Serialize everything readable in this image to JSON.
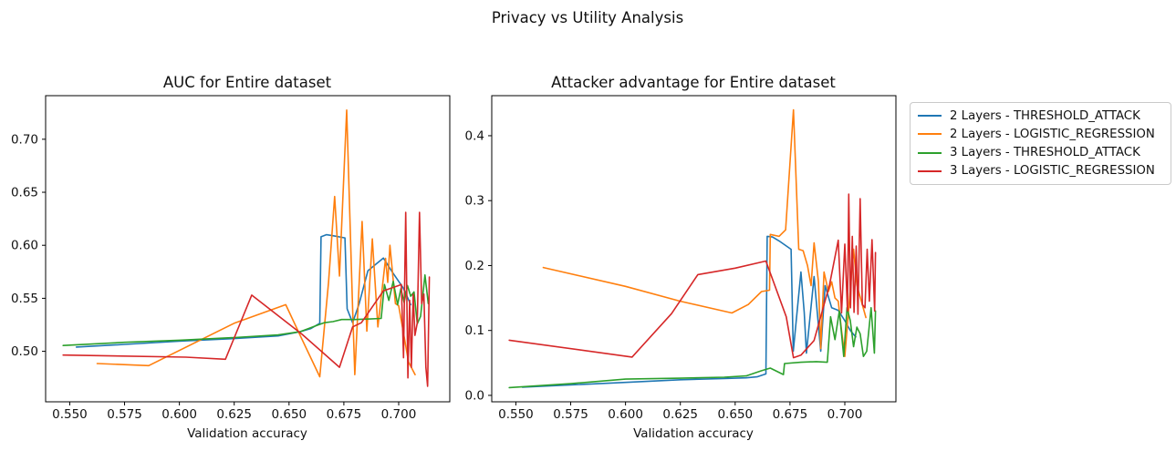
{
  "figure": {
    "suptitle": "Privacy vs Utility Analysis",
    "background": "#ffffff",
    "spine_color": "#000000",
    "text_color": "#111111"
  },
  "legend": {
    "position": "outside-right",
    "entries": [
      {
        "label": "2 Layers - THRESHOLD_ATTACK",
        "color": "#1f77b4"
      },
      {
        "label": "2 Layers - LOGISTIC_REGRESSION",
        "color": "#ff7f0e"
      },
      {
        "label": "3 Layers - THRESHOLD_ATTACK",
        "color": "#2ca02c"
      },
      {
        "label": "3 Layers - LOGISTIC_REGRESSION",
        "color": "#d62728"
      }
    ]
  },
  "chart_data": [
    {
      "type": "line",
      "title": "AUC for Entire dataset",
      "xlabel": "Validation accuracy",
      "ylabel": "",
      "grid": false,
      "xlim": [
        0.539,
        0.7233
      ],
      "ylim": [
        0.4524,
        0.7411
      ],
      "xticks": [
        0.55,
        0.575,
        0.6,
        0.625,
        0.65,
        0.675,
        0.7
      ],
      "xtick_labels": [
        "0.550",
        "0.575",
        "0.600",
        "0.625",
        "0.650",
        "0.675",
        "0.700"
      ],
      "yticks": [
        0.5,
        0.55,
        0.6,
        0.65,
        0.7
      ],
      "ytick_labels": [
        "0.50",
        "0.55",
        "0.60",
        "0.65",
        "0.70"
      ],
      "series": [
        {
          "name": "2 Layers - THRESHOLD_ATTACK",
          "color": "#1f77b4",
          "points": [
            [
              0.553,
              0.504
            ],
            [
              0.575,
              0.5065
            ],
            [
              0.6,
              0.5095
            ],
            [
              0.625,
              0.512
            ],
            [
              0.645,
              0.5145
            ],
            [
              0.655,
              0.5185
            ],
            [
              0.66,
              0.5215
            ],
            [
              0.664,
              0.5265
            ],
            [
              0.6646,
              0.608
            ],
            [
              0.667,
              0.61
            ],
            [
              0.67,
              0.609
            ],
            [
              0.6755,
              0.607
            ],
            [
              0.6765,
              0.54
            ],
            [
              0.679,
              0.527
            ],
            [
              0.682,
              0.545
            ],
            [
              0.686,
              0.576
            ],
            [
              0.693,
              0.588
            ],
            [
              0.697,
              0.575
            ],
            [
              0.7,
              0.566
            ],
            [
              0.702,
              0.56
            ],
            [
              0.704,
              0.551
            ],
            [
              0.7055,
              0.544
            ]
          ]
        },
        {
          "name": "2 Layers - LOGISTIC_REGRESSION",
          "color": "#ff7f0e",
          "points": [
            [
              0.5625,
              0.4885
            ],
            [
              0.586,
              0.4865
            ],
            [
              0.625,
              0.5265
            ],
            [
              0.6485,
              0.544
            ],
            [
              0.656,
              0.511
            ],
            [
              0.664,
              0.476
            ],
            [
              0.668,
              0.565
            ],
            [
              0.6708,
              0.646
            ],
            [
              0.673,
              0.571
            ],
            [
              0.6763,
              0.7275
            ],
            [
              0.679,
              0.54
            ],
            [
              0.68,
              0.478
            ],
            [
              0.6833,
              0.6225
            ],
            [
              0.6855,
              0.519
            ],
            [
              0.688,
              0.606
            ],
            [
              0.6905,
              0.523
            ],
            [
              0.694,
              0.5876
            ],
            [
              0.695,
              0.565
            ],
            [
              0.696,
              0.6
            ],
            [
              0.6985,
              0.545
            ],
            [
              0.7,
              0.543
            ],
            [
              0.7045,
              0.49
            ],
            [
              0.7075,
              0.478
            ]
          ]
        },
        {
          "name": "3 Layers - THRESHOLD_ATTACK",
          "color": "#2ca02c",
          "points": [
            [
              0.547,
              0.5055
            ],
            [
              0.575,
              0.5085
            ],
            [
              0.6,
              0.5105
            ],
            [
              0.625,
              0.513
            ],
            [
              0.645,
              0.5155
            ],
            [
              0.655,
              0.5185
            ],
            [
              0.662,
              0.524
            ],
            [
              0.666,
              0.527
            ],
            [
              0.67,
              0.528
            ],
            [
              0.674,
              0.53
            ],
            [
              0.68,
              0.53
            ],
            [
              0.687,
              0.5305
            ],
            [
              0.692,
              0.531
            ],
            [
              0.6935,
              0.563
            ],
            [
              0.6955,
              0.548
            ],
            [
              0.6975,
              0.566
            ],
            [
              0.6995,
              0.544
            ],
            [
              0.701,
              0.559
            ],
            [
              0.7025,
              0.546
            ],
            [
              0.704,
              0.562
            ],
            [
              0.7055,
              0.552
            ],
            [
              0.707,
              0.556
            ],
            [
              0.7085,
              0.526
            ],
            [
              0.71,
              0.533
            ],
            [
              0.712,
              0.572
            ],
            [
              0.7135,
              0.545
            ]
          ]
        },
        {
          "name": "3 Layers - LOGISTIC_REGRESSION",
          "color": "#d62728",
          "points": [
            [
              0.547,
              0.4965
            ],
            [
              0.603,
              0.4945
            ],
            [
              0.621,
              0.4925
            ],
            [
              0.633,
              0.553
            ],
            [
              0.656,
              0.516
            ],
            [
              0.673,
              0.485
            ],
            [
              0.679,
              0.523
            ],
            [
              0.683,
              0.527
            ],
            [
              0.693,
              0.557
            ],
            [
              0.7,
              0.562
            ],
            [
              0.7012,
              0.563
            ],
            [
              0.7022,
              0.494
            ],
            [
              0.7032,
              0.631
            ],
            [
              0.7042,
              0.475
            ],
            [
              0.705,
              0.548
            ],
            [
              0.7058,
              0.485
            ],
            [
              0.7066,
              0.554
            ],
            [
              0.7074,
              0.515
            ],
            [
              0.7085,
              0.527
            ],
            [
              0.7095,
              0.631
            ],
            [
              0.7105,
              0.545
            ],
            [
              0.7115,
              0.554
            ],
            [
              0.7124,
              0.485
            ],
            [
              0.7132,
              0.467
            ],
            [
              0.714,
              0.57
            ]
          ]
        }
      ]
    },
    {
      "type": "line",
      "title": "Attacker advantage for Entire dataset",
      "xlabel": "Validation accuracy",
      "ylabel": "",
      "grid": false,
      "xlim": [
        0.539,
        0.7233
      ],
      "ylim": [
        -0.0099,
        0.4617
      ],
      "xticks": [
        0.55,
        0.575,
        0.6,
        0.625,
        0.65,
        0.675,
        0.7
      ],
      "xtick_labels": [
        "0.550",
        "0.575",
        "0.600",
        "0.625",
        "0.650",
        "0.675",
        "0.700"
      ],
      "yticks": [
        0.0,
        0.1,
        0.2,
        0.3,
        0.4
      ],
      "ytick_labels": [
        "0.0",
        "0.1",
        "0.2",
        "0.3",
        "0.4"
      ],
      "series": [
        {
          "name": "2 Layers - THRESHOLD_ATTACK",
          "color": "#1f77b4",
          "points": [
            [
              0.553,
              0.0125
            ],
            [
              0.575,
              0.016
            ],
            [
              0.6,
              0.02
            ],
            [
              0.625,
              0.024
            ],
            [
              0.645,
              0.026
            ],
            [
              0.655,
              0.027
            ],
            [
              0.66,
              0.0285
            ],
            [
              0.664,
              0.033
            ],
            [
              0.6646,
              0.245
            ],
            [
              0.667,
              0.244
            ],
            [
              0.67,
              0.238
            ],
            [
              0.6755,
              0.225
            ],
            [
              0.6765,
              0.068
            ],
            [
              0.68,
              0.19
            ],
            [
              0.6815,
              0.128
            ],
            [
              0.6825,
              0.065
            ],
            [
              0.686,
              0.183
            ],
            [
              0.689,
              0.068
            ],
            [
              0.691,
              0.169
            ],
            [
              0.694,
              0.135
            ],
            [
              0.697,
              0.131
            ],
            [
              0.7,
              0.115
            ],
            [
              0.7025,
              0.1
            ],
            [
              0.705,
              0.09
            ]
          ]
        },
        {
          "name": "2 Layers - LOGISTIC_REGRESSION",
          "color": "#ff7f0e",
          "points": [
            [
              0.5625,
              0.197
            ],
            [
              0.6,
              0.168
            ],
            [
              0.625,
              0.145
            ],
            [
              0.6485,
              0.127
            ],
            [
              0.656,
              0.14
            ],
            [
              0.662,
              0.16
            ],
            [
              0.6657,
              0.162
            ],
            [
              0.666,
              0.248
            ],
            [
              0.67,
              0.245
            ],
            [
              0.673,
              0.255
            ],
            [
              0.6766,
              0.44
            ],
            [
              0.679,
              0.225
            ],
            [
              0.681,
              0.223
            ],
            [
              0.683,
              0.2
            ],
            [
              0.6846,
              0.169
            ],
            [
              0.686,
              0.235
            ],
            [
              0.688,
              0.175
            ],
            [
              0.689,
              0.072
            ],
            [
              0.6905,
              0.19
            ],
            [
              0.6925,
              0.16
            ],
            [
              0.694,
              0.175
            ],
            [
              0.6955,
              0.15
            ],
            [
              0.697,
              0.145
            ],
            [
              0.6985,
              0.1
            ],
            [
              0.7,
              0.06
            ],
            [
              0.704,
              0.225
            ],
            [
              0.7055,
              0.17
            ],
            [
              0.7096,
              0.12
            ]
          ]
        },
        {
          "name": "3 Layers - THRESHOLD_ATTACK",
          "color": "#2ca02c",
          "points": [
            [
              0.547,
              0.012
            ],
            [
              0.575,
              0.018
            ],
            [
              0.6,
              0.025
            ],
            [
              0.625,
              0.0265
            ],
            [
              0.645,
              0.028
            ],
            [
              0.655,
              0.03
            ],
            [
              0.662,
              0.038
            ],
            [
              0.666,
              0.042
            ],
            [
              0.672,
              0.032
            ],
            [
              0.6725,
              0.049
            ],
            [
              0.68,
              0.051
            ],
            [
              0.687,
              0.052
            ],
            [
              0.692,
              0.051
            ],
            [
              0.6935,
              0.121
            ],
            [
              0.6955,
              0.086
            ],
            [
              0.6975,
              0.13
            ],
            [
              0.6995,
              0.06
            ],
            [
              0.701,
              0.135
            ],
            [
              0.7025,
              0.115
            ],
            [
              0.704,
              0.075
            ],
            [
              0.7055,
              0.105
            ],
            [
              0.707,
              0.095
            ],
            [
              0.7085,
              0.06
            ],
            [
              0.71,
              0.068
            ],
            [
              0.712,
              0.135
            ],
            [
              0.7135,
              0.065
            ],
            [
              0.714,
              0.13
            ]
          ]
        },
        {
          "name": "3 Layers - LOGISTIC_REGRESSION",
          "color": "#d62728",
          "points": [
            [
              0.547,
              0.085
            ],
            [
              0.603,
              0.059
            ],
            [
              0.621,
              0.126
            ],
            [
              0.633,
              0.186
            ],
            [
              0.65,
              0.196
            ],
            [
              0.664,
              0.207
            ],
            [
              0.6733,
              0.121
            ],
            [
              0.6766,
              0.058
            ],
            [
              0.68,
              0.062
            ],
            [
              0.686,
              0.0845
            ],
            [
              0.693,
              0.17
            ],
            [
              0.697,
              0.239
            ],
            [
              0.6985,
              0.127
            ],
            [
              0.7,
              0.233
            ],
            [
              0.7012,
              0.13
            ],
            [
              0.7018,
              0.31
            ],
            [
              0.7026,
              0.135
            ],
            [
              0.7034,
              0.245
            ],
            [
              0.7042,
              0.128
            ],
            [
              0.7052,
              0.23
            ],
            [
              0.706,
              0.125
            ],
            [
              0.707,
              0.303
            ],
            [
              0.708,
              0.14
            ],
            [
              0.7092,
              0.135
            ],
            [
              0.7102,
              0.225
            ],
            [
              0.7112,
              0.145
            ],
            [
              0.7124,
              0.24
            ],
            [
              0.7136,
              0.13
            ],
            [
              0.714,
              0.22
            ]
          ]
        }
      ]
    }
  ]
}
